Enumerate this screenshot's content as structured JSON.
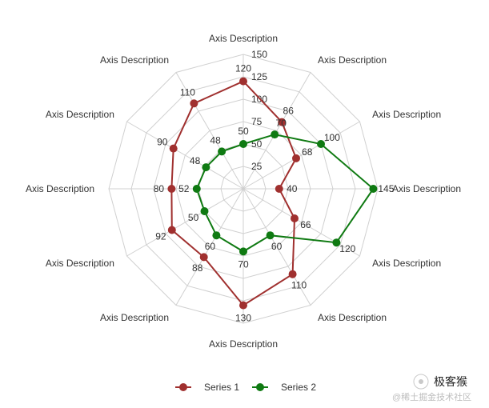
{
  "chart_data": {
    "type": "radar",
    "axes": [
      "Axis Description",
      "Axis Description",
      "Axis Description",
      "Axis Description",
      "Axis Description",
      "Axis Description",
      "Axis Description",
      "Axis Description",
      "Axis Description",
      "Axis Description",
      "Axis Description",
      "Axis Description"
    ],
    "rlim": [
      0,
      150
    ],
    "radial_ticks": [
      25,
      50,
      75,
      100,
      125,
      150
    ],
    "grid": true,
    "series": [
      {
        "name": "Series 1",
        "color": "#a0302f",
        "values": [
          120,
          86,
          68,
          40,
          66,
          110,
          130,
          88,
          92,
          80,
          90,
          110
        ]
      },
      {
        "name": "Series 2",
        "color": "#0f7a12",
        "values": [
          50,
          70,
          100,
          145,
          120,
          60,
          70,
          60,
          50,
          52,
          48,
          48
        ]
      }
    ],
    "legend": {
      "position": "bottom"
    }
  },
  "watermark": {
    "title": "极客猴",
    "subtitle": "@稀土掘金技术社区"
  }
}
